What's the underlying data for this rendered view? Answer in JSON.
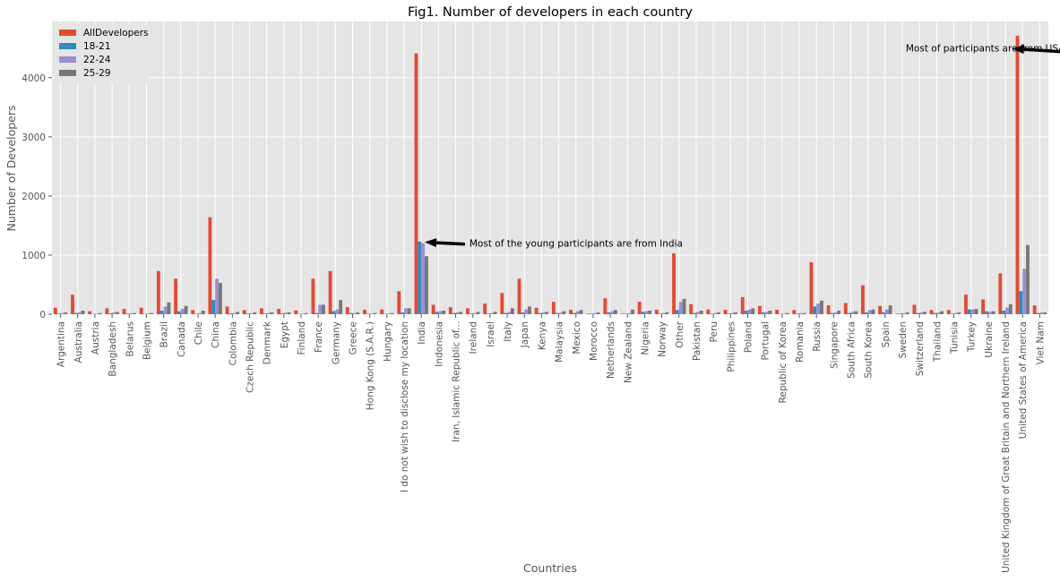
{
  "chart_data": {
    "type": "bar",
    "title": "Fig1. Number of developers in each country",
    "xlabel": "Countries",
    "ylabel": "Number of Developers",
    "ylim": [
      0,
      4950
    ],
    "yticks": [
      0,
      1000,
      2000,
      3000,
      4000
    ],
    "grid": true,
    "legend_position": "top-left",
    "categories": [
      "Argentina",
      "Australia",
      "Austria",
      "Bangladesh",
      "Belarus",
      "Belgium",
      "Brazil",
      "Canada",
      "Chile",
      "China",
      "Colombia",
      "Czech Republic",
      "Denmark",
      "Egypt",
      "Finland",
      "France",
      "Germany",
      "Greece",
      "Hong Kong (S.A.R.)",
      "Hungary",
      "I do not wish to disclose my location",
      "India",
      "Indonesia",
      "Iran, Islamic Republic of...",
      "Ireland",
      "Israel",
      "Italy",
      "Japan",
      "Kenya",
      "Malaysia",
      "Mexico",
      "Morocco",
      "Netherlands",
      "New Zealand",
      "Nigeria",
      "Norway",
      "Other",
      "Pakistan",
      "Peru",
      "Philippines",
      "Poland",
      "Portugal",
      "Republic of Korea",
      "Romania",
      "Russia",
      "Singapore",
      "South Africa",
      "South Korea",
      "Spain",
      "Sweden",
      "Switzerland",
      "Thailand",
      "Tunisia",
      "Turkey",
      "Ukraine",
      "United Kingdom of Great Britain and Northern Ireland",
      "United States of America",
      "Viet Nam"
    ],
    "series": [
      {
        "name": "AllDevelopers",
        "color": "#E24A33",
        "values": [
          110,
          330,
          50,
          100,
          90,
          110,
          730,
          600,
          70,
          1640,
          130,
          70,
          100,
          90,
          65,
          600,
          730,
          120,
          75,
          80,
          390,
          4410,
          160,
          120,
          100,
          180,
          360,
          600,
          110,
          210,
          75,
          10,
          270,
          10,
          210,
          75,
          1030,
          170,
          80,
          75,
          290,
          140,
          75,
          70,
          880,
          150,
          190,
          490,
          140,
          10,
          160,
          70,
          70,
          330,
          250,
          690,
          4710,
          150
        ]
      },
      {
        "name": "18-21",
        "color": "#348ABD",
        "values": [
          10,
          20,
          5,
          15,
          10,
          5,
          60,
          50,
          5,
          240,
          15,
          10,
          10,
          15,
          5,
          20,
          50,
          20,
          10,
          5,
          30,
          1230,
          40,
          20,
          10,
          10,
          20,
          30,
          20,
          20,
          20,
          10,
          30,
          10,
          40,
          10,
          70,
          20,
          10,
          10,
          60,
          30,
          5,
          10,
          130,
          20,
          20,
          30,
          30,
          10,
          20,
          20,
          10,
          80,
          50,
          60,
          390,
          20
        ]
      },
      {
        "name": "22-24",
        "color": "#988ED5",
        "values": [
          20,
          30,
          10,
          30,
          15,
          10,
          130,
          90,
          20,
          600,
          20,
          15,
          20,
          25,
          10,
          160,
          80,
          20,
          10,
          10,
          100,
          1200,
          50,
          30,
          20,
          20,
          40,
          80,
          30,
          25,
          50,
          20,
          50,
          20,
          50,
          20,
          210,
          40,
          20,
          20,
          80,
          40,
          10,
          20,
          180,
          30,
          40,
          70,
          80,
          20,
          30,
          30,
          20,
          80,
          40,
          110,
          770,
          30
        ]
      },
      {
        "name": "25-29",
        "color": "#777777",
        "values": [
          30,
          60,
          20,
          40,
          20,
          20,
          200,
          140,
          60,
          530,
          40,
          30,
          30,
          30,
          20,
          160,
          240,
          30,
          20,
          20,
          100,
          980,
          60,
          40,
          40,
          40,
          100,
          130,
          40,
          50,
          70,
          30,
          70,
          80,
          60,
          30,
          260,
          60,
          30,
          30,
          100,
          60,
          20,
          20,
          230,
          60,
          50,
          80,
          150,
          30,
          40,
          50,
          30,
          90,
          50,
          170,
          1170,
          30
        ]
      }
    ],
    "annotations": [
      {
        "text": "Most of the young participants are from India",
        "text_at": [
          23.8,
          1200
        ],
        "arrow_to": [
          21.2,
          1220
        ]
      },
      {
        "text": "Most of participants are from USA",
        "text_at": [
          49.2,
          4500
        ],
        "arrow_to": [
          55.4,
          4490
        ]
      }
    ]
  }
}
